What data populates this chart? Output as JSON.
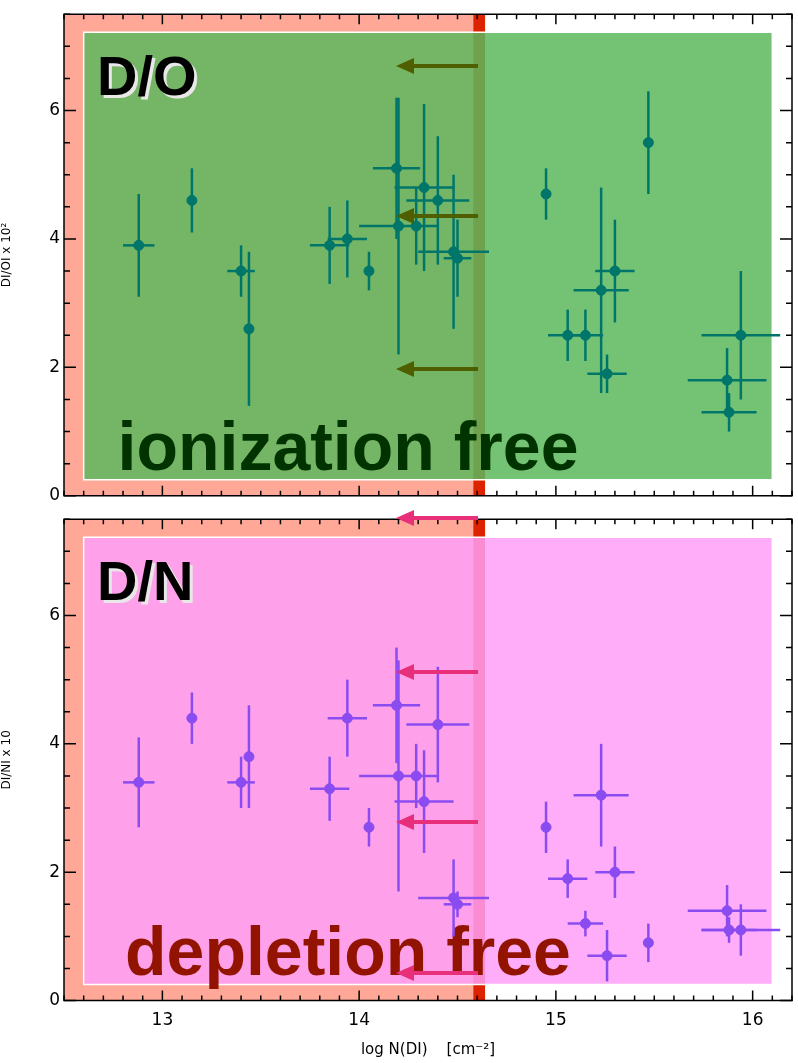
{
  "chart_data": [
    {
      "type": "scatter",
      "ylabel": "DI/OI x 10²",
      "annotations": [
        "D/O"
      ],
      "series": [
        {
          "color": "#00766a",
          "x": [
            12.88,
            13.15,
            13.4,
            13.44,
            13.85,
            13.94,
            14.05,
            14.19,
            14.2,
            14.33,
            14.29,
            14.4,
            14.48,
            14.5,
            14.95,
            15.47,
            15.06,
            15.15,
            15.23,
            15.3,
            15.26,
            15.94,
            15.87,
            15.88
          ],
          "values": [
            3.9,
            4.6,
            3.5,
            2.6,
            3.9,
            4.0,
            3.5,
            5.1,
            4.2,
            4.8,
            4.2,
            4.6,
            3.8,
            3.7,
            4.7,
            5.5,
            2.5,
            2.5,
            3.2,
            3.5,
            1.9,
            2.5,
            1.8,
            1.3
          ],
          "errors": [
            0.8,
            0.5,
            0.4,
            1.2,
            0.6,
            0.6,
            0.3,
            1.1,
            2.0,
            1.3,
            0.6,
            1.0,
            1.2,
            0.6,
            0.4,
            0.8,
            0.4,
            0.4,
            1.6,
            0.8,
            0.3,
            1.0,
            0.5,
            0.3
          ],
          "xerrors": [
            0.08,
            null,
            0.07,
            null,
            0.1,
            0.1,
            null,
            0.12,
            0.2,
            0.15,
            null,
            0.16,
            0.18,
            0.07,
            null,
            null,
            0.1,
            0.09,
            0.14,
            0.1,
            0.1,
            0.2,
            0.2,
            0.14
          ]
        }
      ],
      "xlim": [
        12.5,
        16.2
      ],
      "xticks": [
        13,
        14,
        15,
        16
      ],
      "ylim": [
        0,
        7.5
      ],
      "yticks": [
        0,
        2,
        4,
        6
      ],
      "bands": [
        {
          "axis": "x",
          "from": 12.5,
          "to": 14.58,
          "color": "#ffa898"
        },
        {
          "axis": "x",
          "from": 14.58,
          "to": 14.64,
          "color": "#dd2200"
        },
        {
          "axis": "x",
          "from": 12.6,
          "to": 16.1,
          "color": "#5cb85c",
          "label": "ionization free"
        }
      ],
      "marker": "circle",
      "tick_labels": "y"
    },
    {
      "type": "scatter",
      "xlabel": "log N(DI)    [cm⁻²]",
      "ylabel": "DI/NI x 10",
      "annotations": [
        "D/N"
      ],
      "series": [
        {
          "color": "#8a4cf0",
          "x": [
            12.88,
            13.15,
            13.4,
            13.44,
            13.85,
            13.94,
            14.05,
            14.19,
            14.2,
            14.29,
            14.33,
            14.4,
            14.48,
            14.5,
            14.95,
            15.23,
            15.06,
            15.3,
            15.15,
            15.26,
            15.47,
            15.87,
            15.88,
            15.94
          ],
          "values": [
            3.4,
            4.4,
            3.4,
            3.8,
            3.3,
            4.4,
            2.7,
            4.6,
            3.5,
            3.5,
            3.1,
            4.3,
            1.6,
            1.5,
            2.7,
            3.2,
            1.9,
            2.0,
            1.2,
            0.7,
            0.9,
            1.4,
            1.1,
            1.1
          ],
          "errors": [
            0.7,
            0.4,
            0.4,
            0.8,
            0.5,
            0.6,
            0.3,
            0.9,
            1.8,
            0.5,
            0.8,
            0.9,
            0.6,
            0.2,
            0.4,
            0.8,
            0.3,
            0.4,
            0.2,
            0.4,
            0.3,
            0.4,
            0.2,
            0.4
          ],
          "xerrors": [
            0.08,
            null,
            0.07,
            null,
            0.1,
            0.1,
            null,
            0.12,
            0.2,
            null,
            0.15,
            0.16,
            0.18,
            0.07,
            null,
            0.14,
            0.1,
            0.1,
            0.09,
            0.1,
            null,
            0.2,
            0.14,
            0.2
          ]
        }
      ],
      "xlim": [
        12.5,
        16.2
      ],
      "xticks": [
        13,
        14,
        15,
        16
      ],
      "ylim": [
        0,
        7.5
      ],
      "yticks": [
        0,
        2,
        4,
        6
      ],
      "bands": [
        {
          "axis": "x",
          "from": 12.5,
          "to": 14.58,
          "color": "#ffa898"
        },
        {
          "axis": "x",
          "from": 14.58,
          "to": 14.64,
          "color": "#dd2200"
        },
        {
          "axis": "x",
          "from": 12.6,
          "to": 16.1,
          "color": "#ff9ff8",
          "label": "depletion free"
        }
      ],
      "marker": "circle"
    }
  ]
}
